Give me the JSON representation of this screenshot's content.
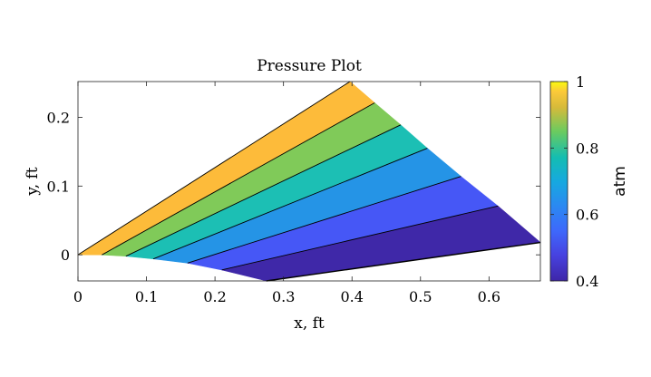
{
  "chart_data": {
    "type": "contour",
    "title": "Pressure Plot",
    "xlabel": "x, ft",
    "ylabel": "y, ft",
    "xlim": [
      0,
      0.675
    ],
    "ylim": [
      -0.038,
      0.252
    ],
    "x_ticks": [
      0,
      0.1,
      0.2,
      0.3,
      0.4,
      0.5,
      0.6
    ],
    "x_tick_labels": [
      "0",
      "0.1",
      "0.2",
      "0.3",
      "0.4",
      "0.5",
      "0.6"
    ],
    "y_ticks": [
      0,
      0.1,
      0.2
    ],
    "y_tick_labels": [
      "0",
      "0.1",
      "0.2"
    ],
    "grid": false,
    "colorbar": {
      "label": "atm",
      "range": [
        0.4,
        1.0
      ],
      "ticks": [
        0.4,
        0.6,
        0.8,
        1.0
      ],
      "tick_labels": [
        "0.4",
        "0.6",
        "0.8",
        "1"
      ],
      "colormap": "parula",
      "placement": "right"
    },
    "domain_vertices": [
      [
        0,
        0
      ],
      [
        0.397,
        0.252
      ],
      [
        0.675,
        0.018
      ],
      [
        0.275,
        -0.038
      ],
      [
        0.21,
        -0.022
      ],
      [
        0.16,
        -0.012
      ],
      [
        0.11,
        -0.006
      ],
      [
        0.07,
        -0.002
      ],
      [
        0.035,
        0
      ]
    ],
    "contour_lines": [
      {
        "level": 0.9,
        "from": [
          0.035,
          0
        ],
        "to": [
          0.433,
          0.221
        ]
      },
      {
        "level": 0.8,
        "from": [
          0.07,
          -0.002
        ],
        "to": [
          0.471,
          0.189
        ]
      },
      {
        "level": 0.7,
        "from": [
          0.11,
          -0.006
        ],
        "to": [
          0.51,
          0.155
        ]
      },
      {
        "level": 0.6,
        "from": [
          0.16,
          -0.012
        ],
        "to": [
          0.559,
          0.114
        ]
      },
      {
        "level": 0.5,
        "from": [
          0.21,
          -0.022
        ],
        "to": [
          0.613,
          0.071
        ]
      }
    ],
    "bands": [
      {
        "range": [
          0.9,
          1.0
        ],
        "color": "#FDBB3A"
      },
      {
        "range": [
          0.8,
          0.9
        ],
        "color": "#80CA59"
      },
      {
        "range": [
          0.7,
          0.8
        ],
        "color": "#1CBFB4"
      },
      {
        "range": [
          0.6,
          0.7
        ],
        "color": "#2594E6"
      },
      {
        "range": [
          0.5,
          0.6
        ],
        "color": "#4657F6"
      },
      {
        "range": [
          0.4,
          0.5
        ],
        "color": "#3F28A8"
      }
    ]
  }
}
